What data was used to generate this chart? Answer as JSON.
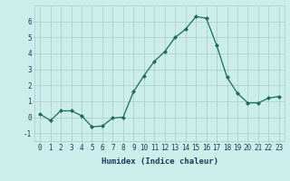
{
  "xlabel": "Humidex (Indice chaleur)",
  "x": [
    0,
    1,
    2,
    3,
    4,
    5,
    6,
    7,
    8,
    9,
    10,
    11,
    12,
    13,
    14,
    15,
    16,
    17,
    18,
    19,
    20,
    21,
    22,
    23
  ],
  "y": [
    0.2,
    -0.2,
    0.4,
    0.4,
    0.1,
    -0.6,
    -0.55,
    -0.05,
    0.0,
    1.6,
    2.6,
    3.5,
    4.1,
    5.0,
    5.5,
    6.3,
    6.2,
    4.5,
    2.5,
    1.5,
    0.9,
    0.9,
    1.2,
    1.3
  ],
  "line_color": "#1a6b5a",
  "marker": "D",
  "marker_size": 2.0,
  "bg_color": "#cceeea",
  "grid_color": "#adc8c4",
  "tick_label_color": "#1a3a5a",
  "axis_label_color": "#1a3a5a",
  "ylim": [
    -1.5,
    7.0
  ],
  "xlim": [
    -0.5,
    23.5
  ],
  "yticks": [
    -1,
    0,
    1,
    2,
    3,
    4,
    5,
    6
  ],
  "xticks": [
    0,
    1,
    2,
    3,
    4,
    5,
    6,
    7,
    8,
    9,
    10,
    11,
    12,
    13,
    14,
    15,
    16,
    17,
    18,
    19,
    20,
    21,
    22,
    23
  ],
  "label_fontsize": 6.5,
  "tick_fontsize": 5.5
}
